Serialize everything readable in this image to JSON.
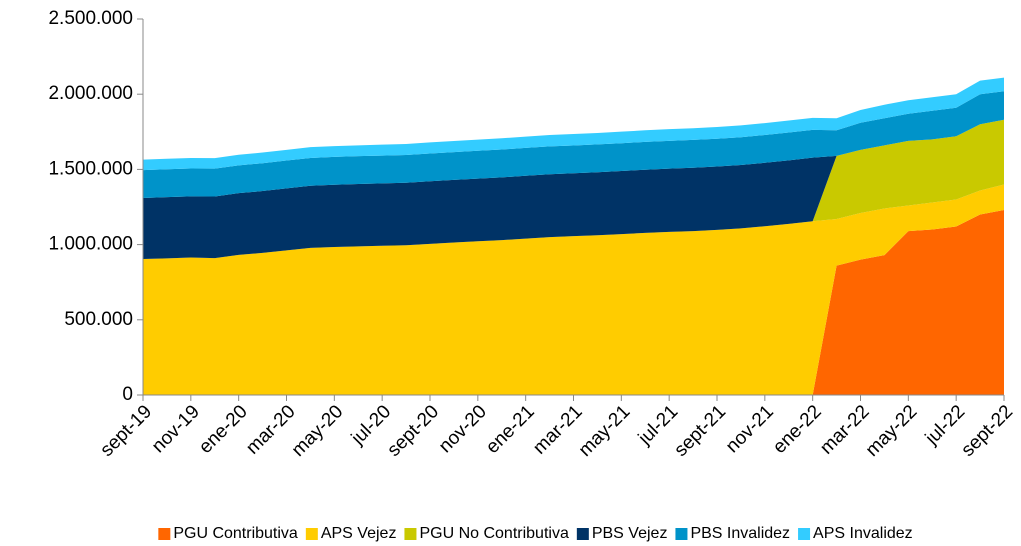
{
  "chart_data": {
    "type": "stacked_area",
    "categories": [
      "sept-19",
      null,
      "nov-19",
      null,
      "ene-20",
      null,
      "mar-20",
      null,
      "may-20",
      null,
      "jul-20",
      null,
      "sept-20",
      null,
      "nov-20",
      null,
      "ene-21",
      null,
      "mar-21",
      null,
      "may-21",
      null,
      "jul-21",
      null,
      "sept-21",
      null,
      "nov-21",
      null,
      "ene-22",
      null,
      "mar-22",
      null,
      "may-22",
      null,
      "jul-22",
      null,
      "sept-22"
    ],
    "series": [
      {
        "name": "PGU Contributiva",
        "color": "#ff6600",
        "values": [
          0,
          0,
          0,
          0,
          0,
          0,
          0,
          0,
          0,
          0,
          0,
          0,
          0,
          0,
          0,
          0,
          0,
          0,
          0,
          0,
          0,
          0,
          0,
          0,
          0,
          0,
          0,
          0,
          0,
          860000,
          900000,
          930000,
          1090000,
          1100000,
          1120000,
          1200000,
          1230000
        ]
      },
      {
        "name": "APS Vejez",
        "color": "#ffcc00",
        "values": [
          904000,
          908000,
          914000,
          910000,
          932000,
          945000,
          962000,
          978000,
          984000,
          988000,
          992000,
          996000,
          1005000,
          1014000,
          1022000,
          1030000,
          1040000,
          1050000,
          1056000,
          1062000,
          1070000,
          1078000,
          1085000,
          1090000,
          1098000,
          1108000,
          1122000,
          1138000,
          1155000,
          310000,
          310000,
          310000,
          170000,
          180000,
          180000,
          160000,
          170000
        ]
      },
      {
        "name": "PGU No Contributiva",
        "color": "#c9c900",
        "values": [
          0,
          0,
          0,
          0,
          0,
          0,
          0,
          0,
          0,
          0,
          0,
          0,
          0,
          0,
          0,
          0,
          0,
          0,
          0,
          0,
          0,
          0,
          0,
          0,
          0,
          0,
          0,
          0,
          0,
          420000,
          420000,
          420000,
          430000,
          420000,
          420000,
          440000,
          430000
        ]
      },
      {
        "name": "PBS Vejez",
        "color": "#003366",
        "values": [
          406000,
          408000,
          407000,
          410000,
          410000,
          411000,
          412000,
          413000,
          414000,
          415000,
          415000,
          415000,
          416000,
          416000,
          417000,
          417000,
          418000,
          418000,
          418000,
          419000,
          419000,
          420000,
          420000,
          421000,
          421000,
          421000,
          422000,
          422000,
          423000,
          0,
          0,
          0,
          0,
          0,
          0,
          0,
          0
        ]
      },
      {
        "name": "PBS Invalidez",
        "color": "#0093c9",
        "values": [
          185000,
          185000,
          185000,
          185000,
          185000,
          185000,
          185000,
          185000,
          185000,
          185000,
          185000,
          185000,
          185000,
          185000,
          185000,
          185000,
          185000,
          185000,
          185000,
          185000,
          185000,
          185000,
          185000,
          185000,
          185000,
          185000,
          185000,
          185000,
          185000,
          170000,
          180000,
          180000,
          180000,
          190000,
          190000,
          200000,
          190000
        ]
      },
      {
        "name": "APS Invalidez",
        "color": "#33ccff",
        "values": [
          70000,
          70000,
          70000,
          70000,
          70000,
          71000,
          71000,
          72000,
          72000,
          72000,
          73000,
          73000,
          74000,
          74000,
          74000,
          75000,
          75000,
          76000,
          76000,
          76000,
          77000,
          77000,
          78000,
          78000,
          78000,
          79000,
          79000,
          80000,
          80000,
          80000,
          85000,
          90000,
          90000,
          90000,
          90000,
          90000,
          90000
        ]
      }
    ],
    "ylim": [
      0,
      2500000
    ],
    "yticks": [
      0,
      {
        "value": 500000,
        "label": "500.000"
      },
      {
        "value": 1000000,
        "label": "1.000.000"
      },
      {
        "value": 1500000,
        "label": "1.500.000"
      },
      {
        "value": 2000000,
        "label": "2.000.000"
      },
      {
        "value": 2500000,
        "label": "2.500.000"
      }
    ],
    "legend": "bottom"
  }
}
